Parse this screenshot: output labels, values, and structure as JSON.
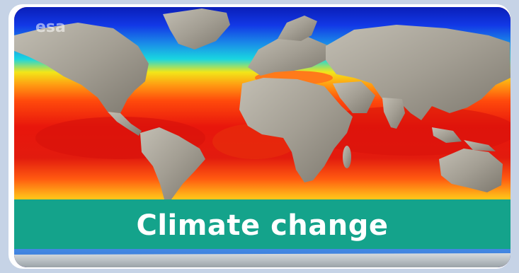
{
  "card": {
    "title": "Climate change",
    "watermark": "esa",
    "colors": {
      "banner": "#14a38b",
      "banner_text": "#ffffff",
      "ocean_warm": "#e02010",
      "ocean_cool": "#1a3ce0",
      "land": "#a29d92",
      "page_background": "#c6d3e6"
    }
  }
}
